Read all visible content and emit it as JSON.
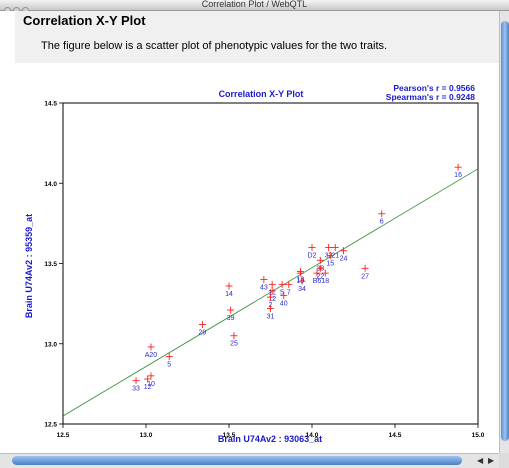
{
  "window": {
    "title": "Correlation Plot / WebQTL"
  },
  "page": {
    "heading": "Correlation X-Y Plot",
    "description": "The figure below is a scatter plot of phenotypic values for the two traits."
  },
  "chart_data": {
    "type": "scatter",
    "title": "Correlation X-Y Plot",
    "xlabel": "Brain U74Av2 : 93063_at",
    "ylabel": "Brain U74Av2 : 95359_at",
    "xlim": [
      12.5,
      15.0
    ],
    "ylim": [
      12.5,
      14.5
    ],
    "x_ticks": [
      "12.5",
      "13.0",
      "13.5",
      "14.0",
      "14.5",
      "15.0"
    ],
    "y_ticks": [
      "12.5",
      "13.0",
      "13.5",
      "14.0",
      "14.5"
    ],
    "stats": {
      "pearson": "Pearson's r = 0.9566",
      "spearman": "Spearman's r = 0.9248"
    },
    "regression": {
      "x": [
        12.5,
        15.0
      ],
      "y": [
        12.55,
        14.09
      ]
    },
    "points": [
      {
        "x": 14.88,
        "y": 14.1,
        "label": "16"
      },
      {
        "x": 14.42,
        "y": 13.81,
        "label": "6"
      },
      {
        "x": 14.19,
        "y": 13.58,
        "label": "24"
      },
      {
        "x": 14.32,
        "y": 13.47,
        "label": "27"
      },
      {
        "x": 14.1,
        "y": 13.6,
        "label": "32"
      },
      {
        "x": 14.14,
        "y": 13.6,
        "label": "21"
      },
      {
        "x": 14.11,
        "y": 13.55,
        "label": "15"
      },
      {
        "x": 14.0,
        "y": 13.6,
        "label": "D2"
      },
      {
        "x": 14.05,
        "y": 13.52,
        "label": "38"
      },
      {
        "x": 14.05,
        "y": 13.47,
        "label": "22"
      },
      {
        "x": 14.08,
        "y": 13.44,
        "label": "18"
      },
      {
        "x": 14.03,
        "y": 13.44,
        "label": "B6"
      },
      {
        "x": 13.93,
        "y": 13.45,
        "label": "13"
      },
      {
        "x": 13.93,
        "y": 13.44,
        "label": "19"
      },
      {
        "x": 13.94,
        "y": 13.39,
        "label": "34"
      },
      {
        "x": 13.86,
        "y": 13.37,
        "label": "7"
      },
      {
        "x": 13.71,
        "y": 13.4,
        "label": "43"
      },
      {
        "x": 13.76,
        "y": 13.37,
        "label": "11"
      },
      {
        "x": 13.76,
        "y": 13.33,
        "label": "12"
      },
      {
        "x": 13.82,
        "y": 13.37,
        "label": "5"
      },
      {
        "x": 13.83,
        "y": 13.3,
        "label": "40"
      },
      {
        "x": 13.75,
        "y": 13.29,
        "label": "2"
      },
      {
        "x": 13.75,
        "y": 13.22,
        "label": "31"
      },
      {
        "x": 13.5,
        "y": 13.36,
        "label": "14"
      },
      {
        "x": 13.51,
        "y": 13.21,
        "label": "39"
      },
      {
        "x": 13.34,
        "y": 13.12,
        "label": "29"
      },
      {
        "x": 13.53,
        "y": 13.05,
        "label": "25"
      },
      {
        "x": 13.03,
        "y": 12.98,
        "label": "A20"
      },
      {
        "x": 13.14,
        "y": 12.92,
        "label": "5"
      },
      {
        "x": 13.03,
        "y": 12.8,
        "label": "10"
      },
      {
        "x": 13.01,
        "y": 12.78,
        "label": "12"
      },
      {
        "x": 12.94,
        "y": 12.77,
        "label": "33"
      }
    ]
  }
}
